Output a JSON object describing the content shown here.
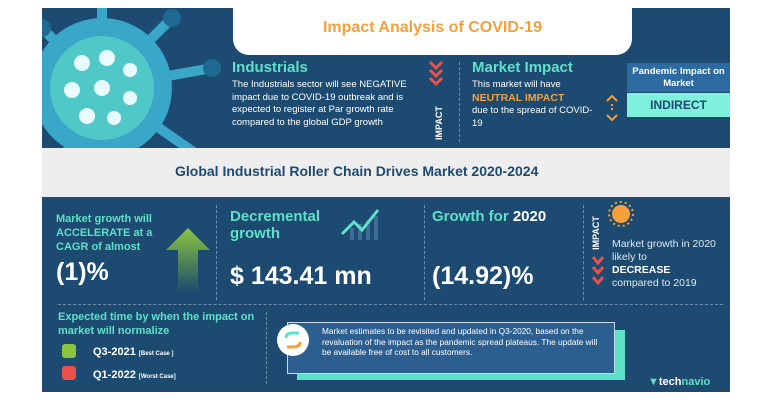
{
  "header": {
    "title": "Impact Analysis of COVID-19"
  },
  "industrials": {
    "title": "Industrials",
    "text": "The Industrials sector will see NEGATIVE impact due to COVID-19 outbreak and is expected to register at Par growth rate compared to the global GDP growth",
    "impact_label": "IMPACT"
  },
  "market_impact": {
    "title": "Market Impact",
    "line1": "This market will have",
    "highlight": "NEUTRAL IMPACT",
    "line2": "due to the spread of COVID-19"
  },
  "pandemic": {
    "label": "Pandemic Impact on Market",
    "value": "INDIRECT"
  },
  "main_title": "Global Industrial Roller Chain Drives Market 2020-2024",
  "cagr": {
    "text": "Market growth will ACCELERATE at a CAGR of almost",
    "value": "(1)%"
  },
  "decremental": {
    "title": "Decremental growth",
    "value": "$ 143.41 mn"
  },
  "growth2020": {
    "title_prefix": "Growth for ",
    "title_year": "2020",
    "value": "(14.92)%"
  },
  "impact2020": {
    "impact_label": "IMPACT",
    "line1": "Market growth in 2020 likely to",
    "highlight": "DECREASE",
    "line2": "compared to 2019"
  },
  "normalize": {
    "title": "Expected time by when the impact on market will normalize",
    "best": "Q3-2021",
    "best_label": "[Best Case ]",
    "worst": "Q1-2022",
    "worst_label": "[Worst Case]"
  },
  "note": "Market estimates to be revisited and updated in Q3-2020, based on the revaluation of the impact as the pandemic spread plateaus. The update will be available free of cost to all customers.",
  "brand": {
    "prefix": "tech",
    "suffix": "navio"
  },
  "colors": {
    "navy": "#1c4a70",
    "teal": "#5fe0c8",
    "orange": "#f5a03a",
    "red": "#e8504a",
    "green": "#8cc63f"
  }
}
